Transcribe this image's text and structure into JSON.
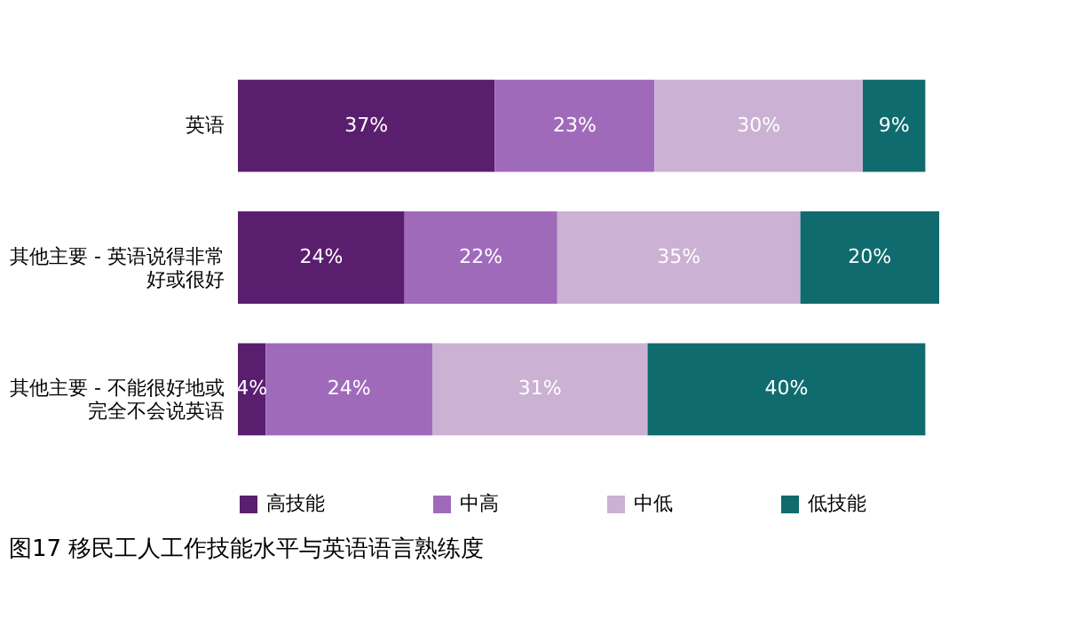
{
  "chart_data": {
    "type": "bar",
    "orientation": "horizontal",
    "stacked": true,
    "legend": "bottom",
    "title": "图17 移民工人工作技能水平与英语语言熟练度",
    "categories": [
      "英语",
      "其他主要 - 英语说得非常好或很好",
      "其他主要 - 不能很好地或完全不会说英语"
    ],
    "series": [
      {
        "name": "高技能",
        "color": "#5a1e6e",
        "values": [
          37,
          24,
          4
        ],
        "value_labels": [
          "37%",
          "24%",
          "4%"
        ]
      },
      {
        "name": "中高",
        "color": "#a06abb",
        "values": [
          23,
          22,
          24
        ],
        "value_labels": [
          "23%",
          "22%",
          "24%"
        ]
      },
      {
        "name": "中低",
        "color": "#cbb1d3",
        "values": [
          30,
          35,
          31
        ],
        "value_labels": [
          "30%",
          "35%",
          "31%"
        ]
      },
      {
        "name": "低技能",
        "color": "#0f6b6d",
        "values": [
          9,
          20,
          40
        ],
        "value_labels": [
          "9%",
          "20%",
          "40%"
        ]
      }
    ]
  }
}
